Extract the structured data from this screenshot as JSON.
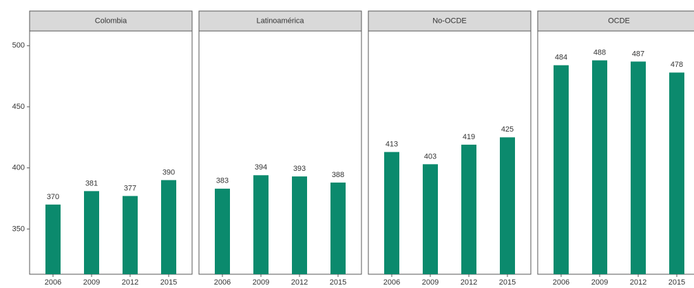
{
  "chart_data": {
    "type": "bar",
    "color": "#0b8a6d",
    "ylim": [
      313,
      512
    ],
    "yticks": [
      350,
      400,
      450,
      500
    ],
    "panels": [
      {
        "title": "Colombia",
        "categories": [
          "2006",
          "2009",
          "2012",
          "2015"
        ],
        "values": [
          370,
          381,
          377,
          390
        ]
      },
      {
        "title": "Latinoamérica",
        "categories": [
          "2006",
          "2009",
          "2012",
          "2015"
        ],
        "values": [
          383,
          394,
          393,
          388
        ]
      },
      {
        "title": "No-OCDE",
        "categories": [
          "2006",
          "2009",
          "2012",
          "2015"
        ],
        "values": [
          413,
          403,
          419,
          425
        ]
      },
      {
        "title": "OCDE",
        "categories": [
          "2006",
          "2009",
          "2012",
          "2015"
        ],
        "values": [
          484,
          488,
          487,
          478
        ]
      }
    ]
  }
}
